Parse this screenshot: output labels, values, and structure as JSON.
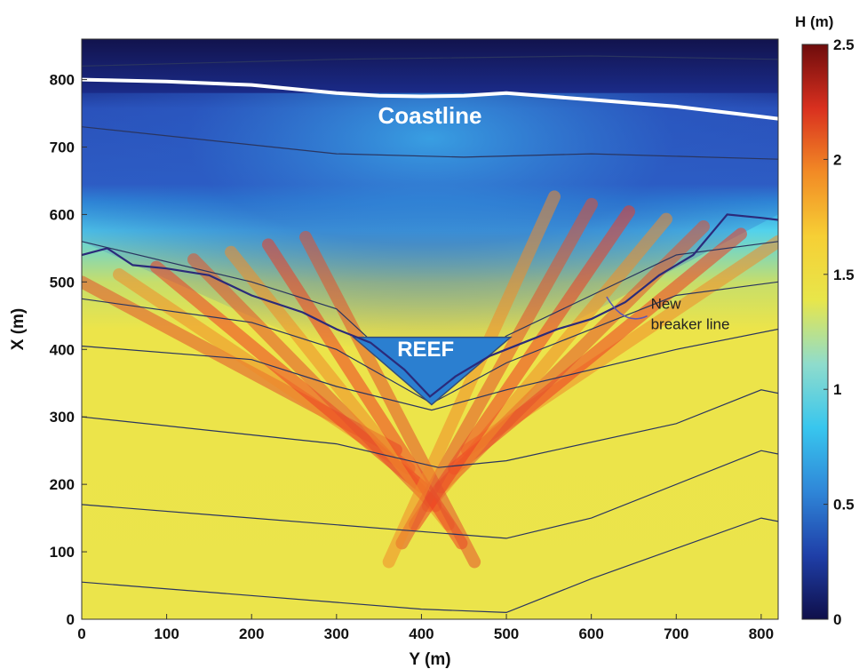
{
  "chart_data": {
    "type": "heatmap",
    "xlabel": "Y (m)",
    "ylabel": "X (m)",
    "xlim": [
      0,
      820
    ],
    "ylim": [
      0,
      860
    ],
    "xticks": [
      "0",
      "100",
      "200",
      "300",
      "400",
      "500",
      "600",
      "700",
      "800"
    ],
    "yticks": [
      "0",
      "100",
      "200",
      "300",
      "400",
      "500",
      "600",
      "700",
      "800"
    ],
    "colorbar": {
      "label": "H (m)",
      "range": [
        0,
        2.5
      ],
      "ticks": [
        "0",
        "0.5",
        "1",
        "1.5",
        "2",
        "2.5"
      ],
      "colormap": [
        "#0f0f4a",
        "#1f3fa8",
        "#2f86d8",
        "#38c6ee",
        "#8fdccc",
        "#e8e64a",
        "#f6cf35",
        "#f28a25",
        "#d9301f",
        "#6e0c0c"
      ]
    },
    "annotations": [
      {
        "text": "Coastline",
        "x": 410,
        "y": 735
      },
      {
        "text": "REEF",
        "x": 405,
        "y": 390
      },
      {
        "text": "New",
        "x": 670,
        "y": 460
      },
      {
        "text": "breaker line",
        "x": 670,
        "y": 430
      }
    ],
    "coastline": [
      [
        0,
        800
      ],
      [
        100,
        797
      ],
      [
        200,
        792
      ],
      [
        300,
        780
      ],
      [
        350,
        776
      ],
      [
        400,
        775
      ],
      [
        450,
        776
      ],
      [
        500,
        780
      ],
      [
        600,
        770
      ],
      [
        700,
        760
      ],
      [
        780,
        748
      ],
      [
        820,
        742
      ]
    ],
    "reef_outline": [
      [
        320,
        418
      ],
      [
        505,
        418
      ],
      [
        412,
        318
      ]
    ],
    "breaker_line": [
      [
        0,
        540
      ],
      [
        30,
        550
      ],
      [
        60,
        525
      ],
      [
        100,
        520
      ],
      [
        150,
        510
      ],
      [
        200,
        480
      ],
      [
        260,
        455
      ],
      [
        300,
        430
      ],
      [
        340,
        410
      ],
      [
        380,
        370
      ],
      [
        410,
        330
      ],
      [
        440,
        360
      ],
      [
        480,
        390
      ],
      [
        520,
        410
      ],
      [
        560,
        430
      ],
      [
        600,
        445
      ],
      [
        640,
        470
      ],
      [
        680,
        510
      ],
      [
        720,
        540
      ],
      [
        760,
        600
      ],
      [
        800,
        595
      ],
      [
        820,
        592
      ]
    ],
    "depth_contours": [
      [
        [
          0,
          55
        ],
        [
          400,
          15
        ],
        [
          500,
          10
        ],
        [
          600,
          60
        ],
        [
          800,
          150
        ],
        [
          820,
          145
        ]
      ],
      [
        [
          0,
          170
        ],
        [
          300,
          140
        ],
        [
          500,
          120
        ],
        [
          600,
          150
        ],
        [
          800,
          250
        ],
        [
          820,
          245
        ]
      ],
      [
        [
          0,
          300
        ],
        [
          300,
          260
        ],
        [
          420,
          225
        ],
        [
          500,
          235
        ],
        [
          700,
          290
        ],
        [
          800,
          340
        ],
        [
          820,
          335
        ]
      ],
      [
        [
          0,
          405
        ],
        [
          200,
          385
        ],
        [
          300,
          345
        ],
        [
          412,
          310
        ],
        [
          500,
          340
        ],
        [
          700,
          400
        ],
        [
          820,
          430
        ]
      ],
      [
        [
          0,
          475
        ],
        [
          200,
          440
        ],
        [
          300,
          400
        ],
        [
          412,
          320
        ],
        [
          500,
          380
        ],
        [
          700,
          480
        ],
        [
          820,
          500
        ]
      ],
      [
        [
          0,
          560
        ],
        [
          200,
          500
        ],
        [
          300,
          460
        ],
        [
          412,
          330
        ],
        [
          500,
          420
        ],
        [
          700,
          540
        ],
        [
          820,
          560
        ]
      ],
      [
        [
          0,
          730
        ],
        [
          300,
          690
        ],
        [
          450,
          685
        ],
        [
          600,
          690
        ],
        [
          820,
          682
        ]
      ],
      [
        [
          0,
          820
        ],
        [
          300,
          830
        ],
        [
          600,
          835
        ],
        [
          820,
          830
        ]
      ]
    ]
  }
}
